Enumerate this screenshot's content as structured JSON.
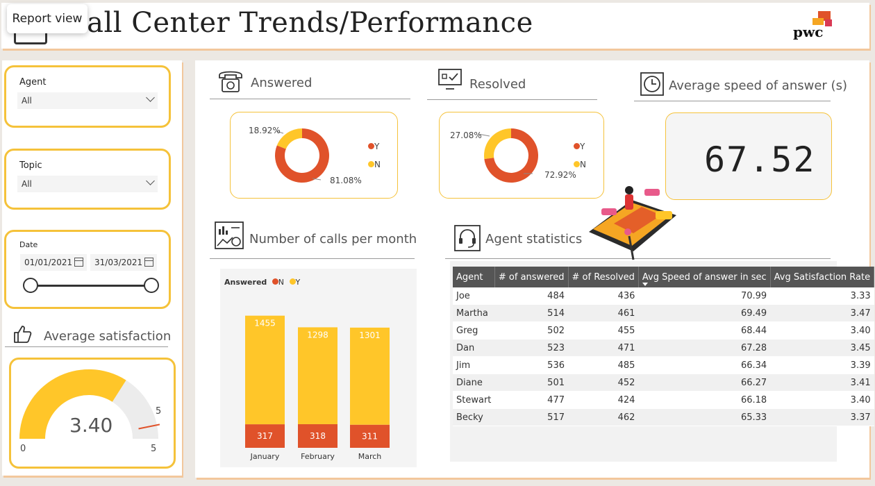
{
  "header": {
    "title": "Call Center Trends/Performance",
    "logo_text": "pwc"
  },
  "tooltip": {
    "label": "Report view"
  },
  "slicers": {
    "agent": {
      "label": "Agent",
      "value": "All"
    },
    "topic": {
      "label": "Topic",
      "value": "All"
    },
    "date": {
      "label": "Date",
      "start": "01/01/2021",
      "end": "31/03/2021"
    }
  },
  "avg_satisfaction": {
    "title": "Average satisfaction",
    "value": "3.40",
    "min": "0",
    "max": "5",
    "target": "5",
    "gauge_fraction": 0.68
  },
  "answered": {
    "title": "Answered",
    "pct_y": "81.08%",
    "pct_n": "18.92%",
    "y_value": 81.08,
    "n_value": 18.92,
    "legend_y": "Y",
    "legend_n": "N"
  },
  "resolved": {
    "title": "Resolved",
    "pct_y": "72.92%",
    "pct_n": "27.08%",
    "y_value": 72.92,
    "n_value": 27.08,
    "legend_y": "Y",
    "legend_n": "N"
  },
  "avg_speed": {
    "title": "Average speed of answer (s)",
    "value": "67.52"
  },
  "calls_per_month": {
    "title": "Number of calls per month",
    "legend_title": "Answered",
    "legend_n": "N",
    "legend_y": "Y"
  },
  "agent_stats": {
    "title": "Agent statistics",
    "columns": [
      "Agent",
      "# of answered",
      "# of Resolved",
      "Avg Speed of answer in sec",
      "Avg Satisfaction Rate"
    ],
    "rows": [
      [
        "Joe",
        "484",
        "436",
        "70.99",
        "3.33"
      ],
      [
        "Martha",
        "514",
        "461",
        "69.49",
        "3.47"
      ],
      [
        "Greg",
        "502",
        "455",
        "68.44",
        "3.40"
      ],
      [
        "Dan",
        "523",
        "471",
        "67.28",
        "3.45"
      ],
      [
        "Jim",
        "536",
        "485",
        "66.34",
        "3.39"
      ],
      [
        "Diane",
        "501",
        "452",
        "66.27",
        "3.41"
      ],
      [
        "Stewart",
        "477",
        "424",
        "66.18",
        "3.40"
      ],
      [
        "Becky",
        "517",
        "462",
        "65.33",
        "3.37"
      ]
    ]
  },
  "colors": {
    "accent": "#f5c23a",
    "y_color": "#ffc629",
    "n_color": "#e0522a",
    "header_dark": "#555555"
  },
  "chart_data": [
    {
      "type": "pie",
      "title": "Answered",
      "categories": [
        "Y",
        "N"
      ],
      "values": [
        81.08,
        18.92
      ]
    },
    {
      "type": "pie",
      "title": "Resolved",
      "categories": [
        "Y",
        "N"
      ],
      "values": [
        72.92,
        27.08
      ]
    },
    {
      "type": "bar",
      "title": "Number of calls per month",
      "categories": [
        "January",
        "February",
        "March"
      ],
      "stacked": true,
      "legend_title": "Answered",
      "series": [
        {
          "name": "N",
          "values": [
            317,
            318,
            311
          ]
        },
        {
          "name": "Y",
          "values": [
            1455,
            1298,
            1301
          ]
        }
      ]
    }
  ]
}
